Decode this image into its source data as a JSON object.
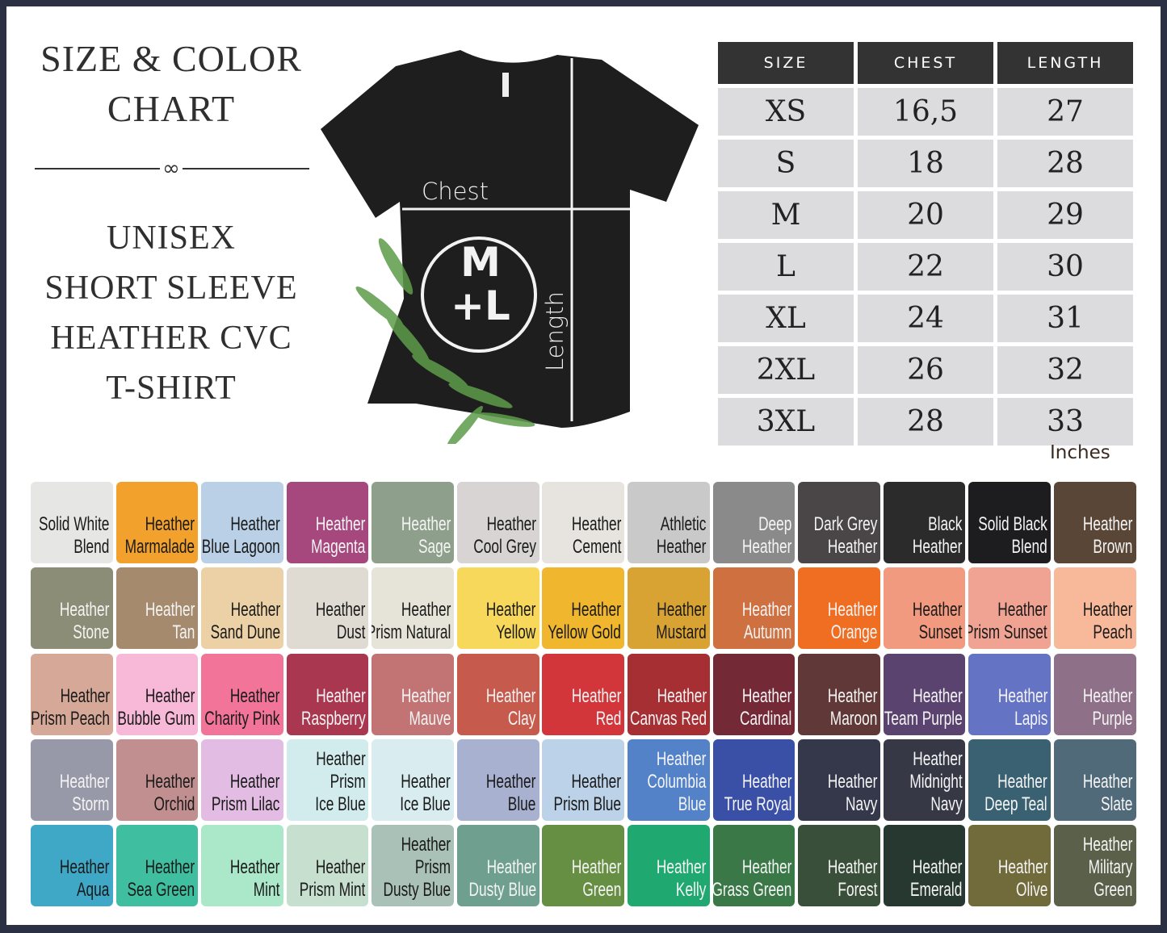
{
  "header": {
    "title": "SIZE & COLOR CHART",
    "subtitle_lines": [
      "UNISEX",
      "SHORT SLEEVE",
      "HEATHER CVC",
      "T-SHIRT"
    ]
  },
  "shirt": {
    "chest_label": "Chest",
    "length_label": "Length",
    "logo_top": "M",
    "logo_bottom": "+L"
  },
  "size_table": {
    "headers": [
      "SIZE",
      "CHEST",
      "LENGTH"
    ],
    "rows": [
      [
        "XS",
        "16,5",
        "27"
      ],
      [
        "S",
        "18",
        "28"
      ],
      [
        "M",
        "20",
        "29"
      ],
      [
        "L",
        "22",
        "30"
      ],
      [
        "XL",
        "24",
        "31"
      ],
      [
        "2XL",
        "26",
        "32"
      ],
      [
        "3XL",
        "28",
        "33"
      ]
    ],
    "units": "Inches"
  },
  "colors": [
    {
      "name": "Solid White\nBlend",
      "hex": "#e6e6e4",
      "text": "dark"
    },
    {
      "name": "Heather\nMarmalade",
      "hex": "#f1a12c",
      "text": "dark"
    },
    {
      "name": "Heather\nBlue Lagoon",
      "hex": "#b9d0e6",
      "text": "dark"
    },
    {
      "name": "Heather\nMagenta",
      "hex": "#a6487e",
      "text": "light"
    },
    {
      "name": "Heather\nSage",
      "hex": "#8ea08b",
      "text": "light"
    },
    {
      "name": "Heather\nCool Grey",
      "hex": "#d9d4d4",
      "text": "dark"
    },
    {
      "name": "Heather\nCement",
      "hex": "#e7e4df",
      "text": "dark"
    },
    {
      "name": "Athletic\nHeather",
      "hex": "#c9c9c9",
      "text": "dark"
    },
    {
      "name": "Deep\nHeather",
      "hex": "#8a8a8b",
      "text": "light"
    },
    {
      "name": "Dark Grey\nHeather",
      "hex": "#4a4546",
      "text": "light"
    },
    {
      "name": "Black\nHeather",
      "hex": "#2b2b2c",
      "text": "light"
    },
    {
      "name": "Solid Black\nBlend",
      "hex": "#1d1d1f",
      "text": "light"
    },
    {
      "name": "Heather\nBrown",
      "hex": "#594636",
      "text": "light"
    },
    {
      "name": "Heather\nStone",
      "hex": "#8b8d76",
      "text": "light"
    },
    {
      "name": "Heather\nTan",
      "hex": "#a68a6d",
      "text": "light"
    },
    {
      "name": "Heather\nSand Dune",
      "hex": "#ecd1a6",
      "text": "dark"
    },
    {
      "name": "Heather\nDust",
      "hex": "#e0dbd2",
      "text": "dark"
    },
    {
      "name": "Heather\nPrism Natural",
      "hex": "#e6e4d8",
      "text": "dark"
    },
    {
      "name": "Heather\nYellow",
      "hex": "#f7d85a",
      "text": "dark"
    },
    {
      "name": "Heather\nYellow Gold",
      "hex": "#f0b62e",
      "text": "dark"
    },
    {
      "name": "Heather\nMustard",
      "hex": "#d9a334",
      "text": "dark"
    },
    {
      "name": "Heather\nAutumn",
      "hex": "#cf7040",
      "text": "light"
    },
    {
      "name": "Heather\nOrange",
      "hex": "#ef6e22",
      "text": "light"
    },
    {
      "name": "Heather\nSunset",
      "hex": "#f29a80",
      "text": "dark"
    },
    {
      "name": "Heather\nPrism Sunset",
      "hex": "#f0a392",
      "text": "dark"
    },
    {
      "name": "Heather\nPeach",
      "hex": "#f7b99a",
      "text": "dark"
    },
    {
      "name": "Heather\nPrism Peach",
      "hex": "#d6a898",
      "text": "dark"
    },
    {
      "name": "Heather\nBubble Gum",
      "hex": "#f8b9d9",
      "text": "dark"
    },
    {
      "name": "Heather\nCharity Pink",
      "hex": "#f27499",
      "text": "dark"
    },
    {
      "name": "Heather\nRaspberry",
      "hex": "#aa3750",
      "text": "light"
    },
    {
      "name": "Heather\nMauve",
      "hex": "#c27474",
      "text": "light"
    },
    {
      "name": "Heather\nClay",
      "hex": "#c65a4c",
      "text": "light"
    },
    {
      "name": "Heather\nRed",
      "hex": "#d2363a",
      "text": "light"
    },
    {
      "name": "Heather\nCanvas Red",
      "hex": "#a62f33",
      "text": "light"
    },
    {
      "name": "Heather\nCardinal",
      "hex": "#732a36",
      "text": "light"
    },
    {
      "name": "Heather\nMaroon",
      "hex": "#5f3837",
      "text": "light"
    },
    {
      "name": "Heather\nTeam Purple",
      "hex": "#5b4370",
      "text": "light"
    },
    {
      "name": "Heather\nLapis",
      "hex": "#6473c4",
      "text": "light"
    },
    {
      "name": "Heather\nPurple",
      "hex": "#8e7089",
      "text": "light"
    },
    {
      "name": "Heather\nStorm",
      "hex": "#9899a8",
      "text": "light"
    },
    {
      "name": "Heather\nOrchid",
      "hex": "#c18f8f",
      "text": "dark"
    },
    {
      "name": "Heather\nPrism Lilac",
      "hex": "#e2bce3",
      "text": "dark"
    },
    {
      "name": "Heather\nPrism\nIce Blue",
      "hex": "#d2eced",
      "text": "dark"
    },
    {
      "name": "Heather\nIce Blue",
      "hex": "#d9ecef",
      "text": "dark"
    },
    {
      "name": "Heather\nBlue",
      "hex": "#a9b1d1",
      "text": "dark"
    },
    {
      "name": "Heather\nPrism Blue",
      "hex": "#bcd2e8",
      "text": "dark"
    },
    {
      "name": "Heather\nColumbia\nBlue",
      "hex": "#5382c8",
      "text": "light"
    },
    {
      "name": "Heather\nTrue Royal",
      "hex": "#3a50a7",
      "text": "light"
    },
    {
      "name": "Heather\nNavy",
      "hex": "#34384a",
      "text": "light"
    },
    {
      "name": "Heather\nMidnight\nNavy",
      "hex": "#363846",
      "text": "light"
    },
    {
      "name": "Heather\nDeep Teal",
      "hex": "#3a6171",
      "text": "light"
    },
    {
      "name": "Heather\nSlate",
      "hex": "#516a79",
      "text": "light"
    },
    {
      "name": "Heather\nAqua",
      "hex": "#40a8c7",
      "text": "dark"
    },
    {
      "name": "Heather\nSea Green",
      "hex": "#3fbf9f",
      "text": "dark"
    },
    {
      "name": "Heather\nMint",
      "hex": "#abe8c9",
      "text": "dark"
    },
    {
      "name": "Heather\nPrism Mint",
      "hex": "#c6dfcf",
      "text": "dark"
    },
    {
      "name": "Heather\nPrism\nDusty Blue",
      "hex": "#aac1b8",
      "text": "dark"
    },
    {
      "name": "Heather\nDusty Blue",
      "hex": "#6fa08f",
      "text": "light"
    },
    {
      "name": "Heather\nGreen",
      "hex": "#678f43",
      "text": "light"
    },
    {
      "name": "Heather\nKelly",
      "hex": "#1fa86f",
      "text": "light"
    },
    {
      "name": "Heather\nGrass Green",
      "hex": "#3a7848",
      "text": "light"
    },
    {
      "name": "Heather\nForest",
      "hex": "#3a4f3a",
      "text": "light"
    },
    {
      "name": "Heather\nEmerald",
      "hex": "#273831",
      "text": "light"
    },
    {
      "name": "Heather\nOlive",
      "hex": "#716a3a",
      "text": "light"
    },
    {
      "name": "Heather\nMilitary\nGreen",
      "hex": "#5a6049",
      "text": "light"
    }
  ]
}
